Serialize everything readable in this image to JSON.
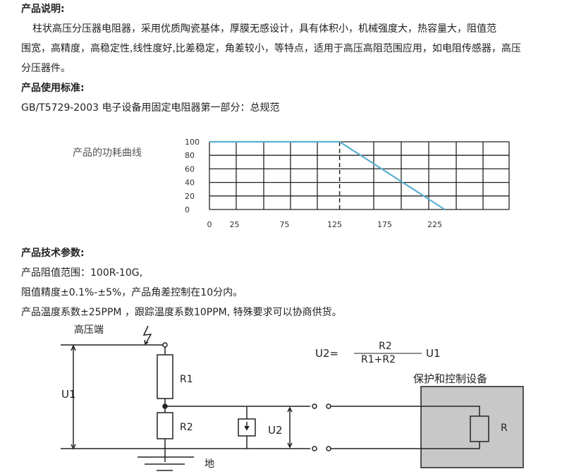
{
  "desc": {
    "heading": "产品说明:",
    "line1": "柱状高压分压器电阻器，采用优质陶瓷基体，厚膜无感设计，具有体积小，机械强度大，热容量大，阻值范",
    "line2": "围宽，高精度，高稳定性,线性度好,比差稳定，角差较小，等特点，适用于高压高阻范围应用，如电阻传感器，高压",
    "line3": "分压器件。"
  },
  "standard": {
    "heading": "产品使用标准:",
    "text": "GB/T5729-2003 电子设备用固定电阻器第一部分：总规范"
  },
  "chart_data": {
    "type": "line",
    "title": "产品的功耗曲线",
    "xticks": [
      "0",
      "25",
      "75",
      "125",
      "175",
      "225"
    ],
    "yticks": [
      "100",
      "80",
      "60",
      "40",
      "20",
      "0"
    ],
    "ylim": [
      0,
      100
    ],
    "grid": true,
    "dashed_marker_x": 130,
    "series": [
      {
        "x": [
          0,
          130,
          235
        ],
        "y": [
          100,
          100,
          0
        ],
        "color": "#5aaed0"
      }
    ]
  },
  "params": {
    "heading": "产品技术参数:",
    "line1": "产品阻值范围：100R-10G,",
    "line2": "阻值精度±0.1%-±5%，产品角差控制在10分内。",
    "line3": "产品温度系数±25PPM ，跟踪温度系数10PPM, 特殊要求可以协商供货。"
  },
  "circuit": {
    "hv": "高压端",
    "ground": "地",
    "u1": "U1",
    "u2": "U2",
    "r1": "R1",
    "r2": "R2",
    "r": "R",
    "device": "保护和控制设备",
    "formula_lhs": "U2=",
    "formula_num": "R2",
    "formula_den": "R1+R2",
    "formula_rhs": "U1",
    "device_fill": "#c8c8c8"
  }
}
